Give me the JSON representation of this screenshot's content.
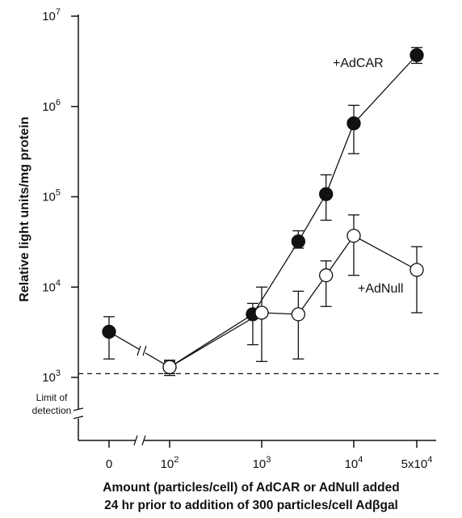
{
  "chart_data": {
    "type": "line",
    "ylabel": "Relative light units/mg protein",
    "xlabel_line1": "Amount (particles/cell) of AdCAR or AdNull added",
    "xlabel_line2": "24 hr prior to addition of 300 particles/cell Adβgal",
    "y_scale": "log",
    "ylim": [
      1000,
      10000000
    ],
    "y_ticks": [
      {
        "base": "10",
        "exp": "3"
      },
      {
        "base": "10",
        "exp": "4"
      },
      {
        "base": "10",
        "exp": "5"
      },
      {
        "base": "10",
        "exp": "6"
      },
      {
        "base": "10",
        "exp": "7"
      }
    ],
    "x_ticks": [
      {
        "base": "0",
        "exp": ""
      },
      {
        "base": "10",
        "exp": "2"
      },
      {
        "base": "10",
        "exp": "3"
      },
      {
        "base": "10",
        "exp": "4"
      },
      {
        "base": "5x10",
        "exp": "4"
      }
    ],
    "detection_limit": 1100,
    "detection_label_line1": "Limit of",
    "detection_label_line2": "detection",
    "grid": false,
    "series": [
      {
        "name": "+AdCAR",
        "marker": "filled-circle",
        "color": "#111111",
        "x": [
          0,
          100,
          800,
          2500,
          5000,
          10000,
          50000
        ],
        "y": [
          3200,
          1300,
          5000,
          32000,
          107000,
          650000,
          3700000
        ],
        "y_low": [
          1600,
          1100,
          2300,
          27000,
          55000,
          300000,
          3000000
        ],
        "y_high": [
          4700,
          1550,
          6600,
          42000,
          175000,
          1030000,
          4500000
        ]
      },
      {
        "name": "+AdNull",
        "marker": "open-circle",
        "color": "#111111",
        "x": [
          100,
          1000,
          2500,
          5000,
          10000,
          50000
        ],
        "y": [
          1300,
          5200,
          5000,
          13500,
          37000,
          15500
        ],
        "y_low": [
          1050,
          1500,
          1600,
          6100,
          13500,
          5200
        ],
        "y_high": [
          1500,
          10000,
          9000,
          19500,
          63000,
          28000
        ]
      }
    ]
  }
}
